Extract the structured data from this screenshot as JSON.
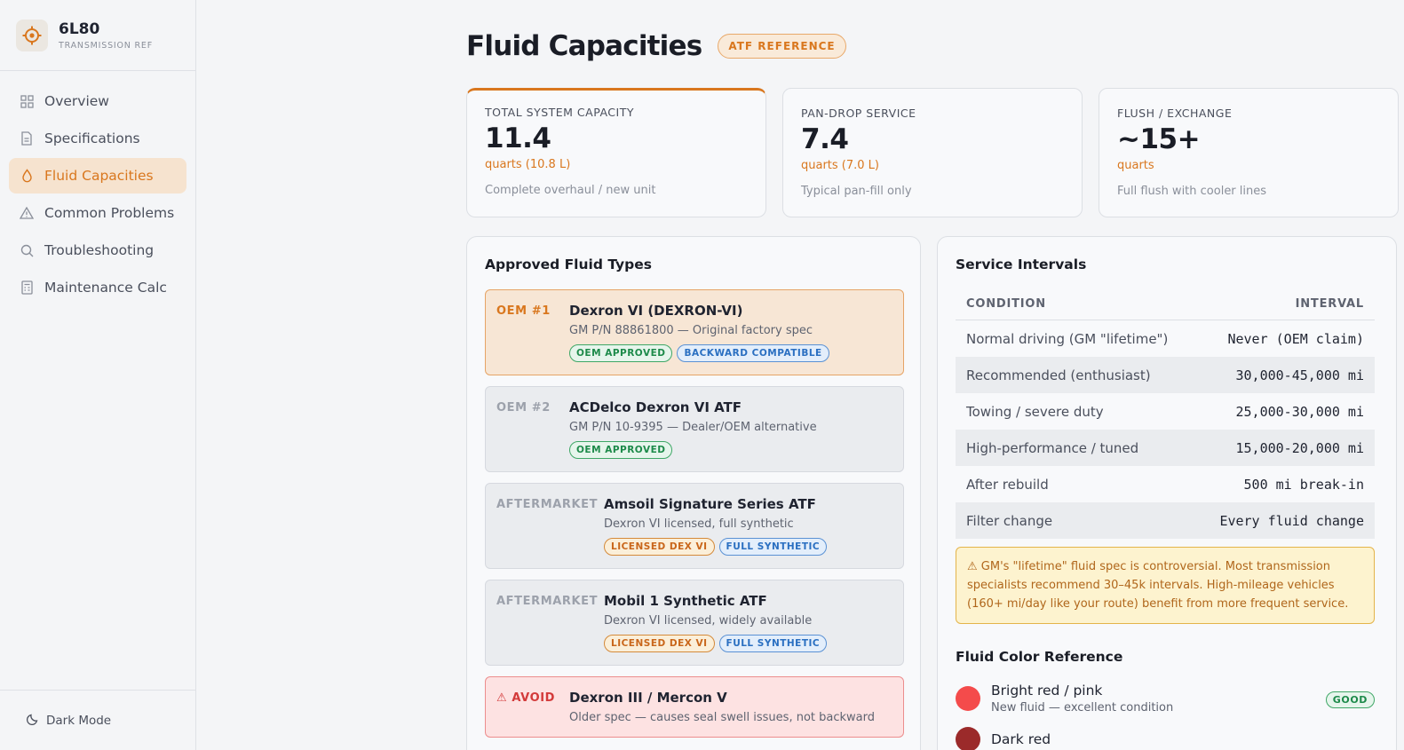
{
  "brand": {
    "title": "6L80",
    "subtitle": "TRANSMISSION REF",
    "icon": "gear-target-icon"
  },
  "nav": {
    "items": [
      {
        "label": "Overview",
        "icon": "grid-icon",
        "active": false
      },
      {
        "label": "Specifications",
        "icon": "document-icon",
        "active": false
      },
      {
        "label": "Fluid Capacities",
        "icon": "droplet-icon",
        "active": true
      },
      {
        "label": "Common Problems",
        "icon": "warning-triangle-icon",
        "active": false
      },
      {
        "label": "Troubleshooting",
        "icon": "search-icon",
        "active": false
      },
      {
        "label": "Maintenance Calc",
        "icon": "calculator-icon",
        "active": false
      }
    ]
  },
  "footer": {
    "dark_mode_label": "Dark Mode"
  },
  "page": {
    "title": "Fluid Capacities",
    "badge": "ATF REFERENCE"
  },
  "stats": [
    {
      "label": "TOTAL SYSTEM CAPACITY",
      "value": "11.4",
      "unit": "quarts (10.8 L)",
      "note": "Complete overhaul / new unit"
    },
    {
      "label": "PAN-DROP SERVICE",
      "value": "7.4",
      "unit": "quarts (7.0 L)",
      "note": "Typical pan-fill only"
    },
    {
      "label": "FLUSH / EXCHANGE",
      "value": "~15+",
      "unit": "quarts",
      "note": "Full flush with cooler lines"
    }
  ],
  "fluids": {
    "title": "Approved Fluid Types",
    "items": [
      {
        "rank": "OEM #1",
        "name": "Dexron VI (DEXRON-VI)",
        "desc": "GM P/N 88861800 — Original factory spec",
        "tags": [
          "OEM APPROVED",
          "BACKWARD COMPATIBLE"
        ]
      },
      {
        "rank": "OEM #2",
        "name": "ACDelco Dexron VI ATF",
        "desc": "GM P/N 10-9395 — Dealer/OEM alternative",
        "tags": [
          "OEM APPROVED"
        ]
      },
      {
        "rank": "AFTERMARKET",
        "name": "Amsoil Signature Series ATF",
        "desc": "Dexron VI licensed, full synthetic",
        "tags": [
          "LICENSED DEX VI",
          "FULL SYNTHETIC"
        ]
      },
      {
        "rank": "AFTERMARKET",
        "name": "Mobil 1 Synthetic ATF",
        "desc": "Dexron VI licensed, widely available",
        "tags": [
          "LICENSED DEX VI",
          "FULL SYNTHETIC"
        ]
      },
      {
        "rank": "⚠ AVOID",
        "name": "Dexron III / Mercon V",
        "desc": "Older spec — causes seal swell issues, not backward"
      }
    ]
  },
  "intervals": {
    "title": "Service Intervals",
    "col_condition": "CONDITION",
    "col_interval": "INTERVAL",
    "rows": [
      {
        "condition": "Normal driving (GM \"lifetime\")",
        "interval": "Never (OEM claim)"
      },
      {
        "condition": "Recommended (enthusiast)",
        "interval": "30,000-45,000 mi"
      },
      {
        "condition": "Towing / severe duty",
        "interval": "25,000-30,000 mi"
      },
      {
        "condition": "High-performance / tuned",
        "interval": "15,000-20,000 mi"
      },
      {
        "condition": "After rebuild",
        "interval": "500 mi break-in"
      },
      {
        "condition": "Filter change",
        "interval": "Every fluid change"
      }
    ],
    "warning": "⚠ GM's \"lifetime\" fluid spec is controversial. Most transmission specialists recommend 30–45k intervals. High-mileage vehicles (160+ mi/day like your route) benefit from more frequent service."
  },
  "colors": {
    "title": "Fluid Color Reference",
    "items": [
      {
        "name": "Bright red / pink",
        "desc": "New fluid — excellent condition",
        "tag": "GOOD",
        "swatch": "#f44b4b"
      },
      {
        "name": "Dark red",
        "swatch": "#9b2a2a"
      }
    ]
  },
  "theme": {
    "accent": "#d9771e",
    "good": "#1d8a4a",
    "info": "#2a6fc1",
    "danger": "#d33a3a"
  }
}
